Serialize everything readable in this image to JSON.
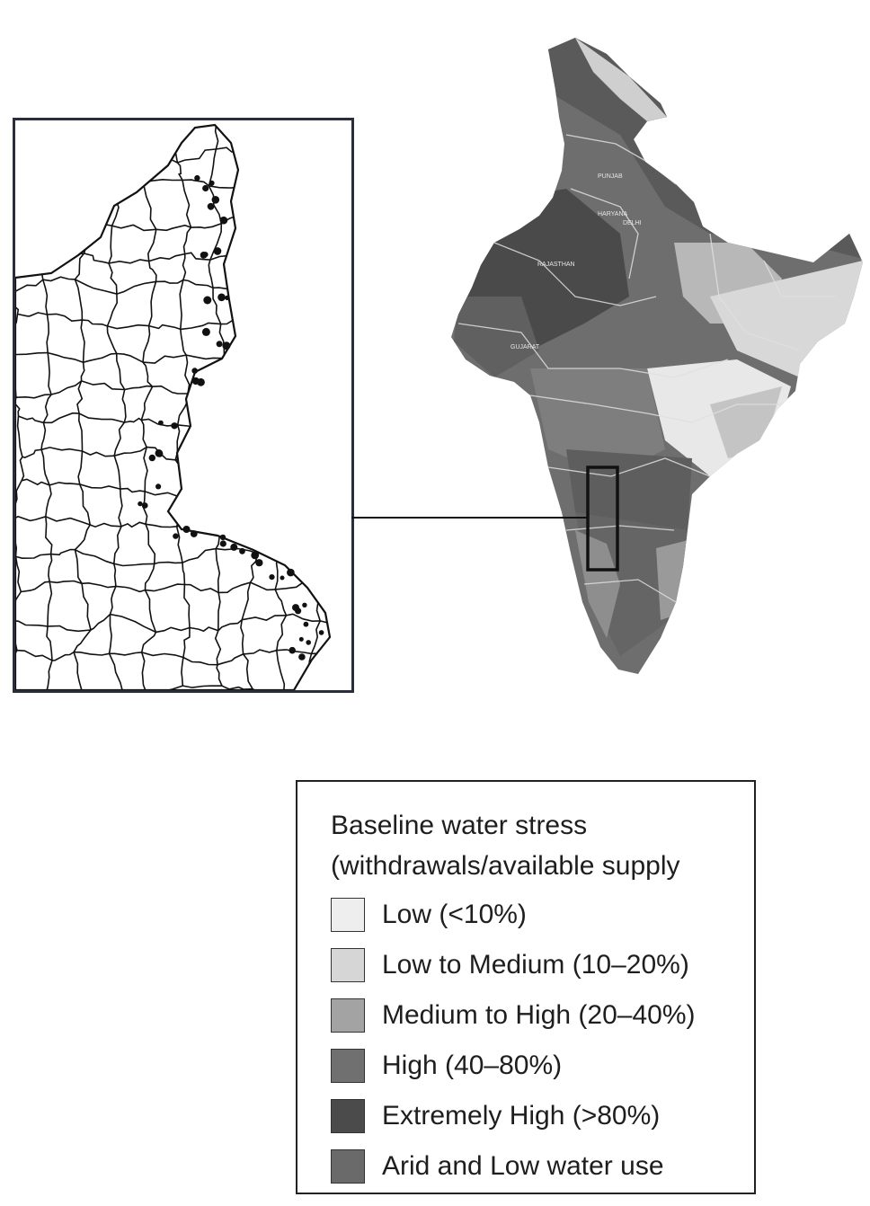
{
  "map": {
    "state_labels": [
      "PUNJAB",
      "HARYANA",
      "DELHI",
      "RAJASTHAN",
      "GUJARAT"
    ]
  },
  "legend": {
    "title_line1": "Baseline water stress",
    "title_line2": "(withdrawals/available supply",
    "items": [
      {
        "label": "Low (<10%)",
        "color": "#eeeeee"
      },
      {
        "label": "Low to Medium (10–20%)",
        "color": "#d6d6d6"
      },
      {
        "label": "Medium to High (20–40%)",
        "color": "#a3a3a3"
      },
      {
        "label": "High (40–80%)",
        "color": "#707070"
      },
      {
        "label": "Extremely High (>80%)",
        "color": "#4b4b4b"
      },
      {
        "label": "Arid and Low water use",
        "color": "#6a6a6a"
      }
    ]
  }
}
